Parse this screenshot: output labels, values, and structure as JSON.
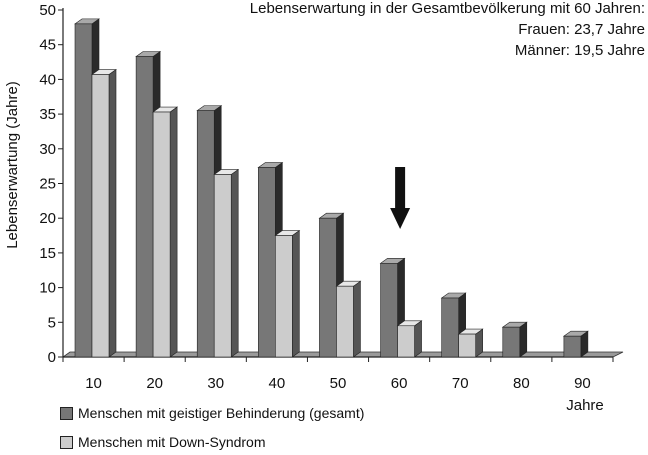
{
  "chart_data": {
    "type": "bar",
    "categories": [
      "10",
      "20",
      "30",
      "40",
      "50",
      "60",
      "70",
      "80",
      "90"
    ],
    "xlabel": "Jahre",
    "ylabel": "Lebenserwartung (Jahre)",
    "ylim": [
      0,
      50
    ],
    "yticks": [
      0,
      5,
      10,
      15,
      20,
      25,
      30,
      35,
      40,
      45,
      50
    ],
    "grid": false,
    "style": "3d",
    "legend_position": "bottom-left",
    "series": [
      {
        "name": "Menschen mit geistiger Behinderung (gesamt)",
        "color": "#777777",
        "values": [
          48,
          43.3,
          35.5,
          27.3,
          20,
          13.5,
          8.5,
          4.3,
          3
        ]
      },
      {
        "name": "Menschen mit Down-Syndrom",
        "color": "#cccccc",
        "values": [
          40.7,
          35.3,
          26.3,
          17.5,
          10.2,
          4.5,
          3.3,
          null,
          null
        ]
      }
    ],
    "annotation": {
      "lines": [
        "Lebenserwartung in der Gesamtbevölkerung mit 60 Jahren:",
        "Frauen: 23,7 Jahre",
        "Männer: 19,5 Jahre"
      ],
      "arrow_category": "60"
    }
  }
}
